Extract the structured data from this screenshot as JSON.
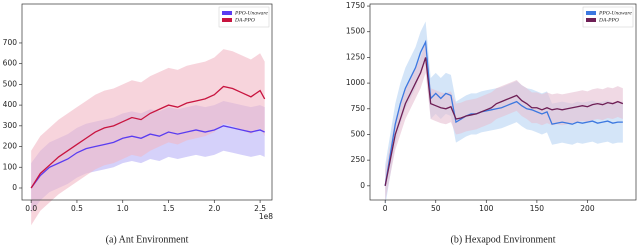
{
  "chart_data": [
    {
      "type": "line",
      "caption": "(a) Ant Environment",
      "x_offset_label": "1e8",
      "x": [
        0,
        0.1,
        0.2,
        0.3,
        0.4,
        0.5,
        0.6,
        0.7,
        0.8,
        0.9,
        1.0,
        1.1,
        1.2,
        1.3,
        1.4,
        1.5,
        1.6,
        1.7,
        1.8,
        1.9,
        2.0,
        2.1,
        2.2,
        2.3,
        2.4,
        2.5,
        2.55
      ],
      "xlim": [
        -0.1,
        2.63
      ],
      "xticks": [
        {
          "value": 0,
          "label": "0.0"
        },
        0.5,
        {
          "value": 1,
          "label": "1.0"
        },
        1.5,
        {
          "value": 2,
          "label": "2.0"
        },
        2.5
      ],
      "ylim": [
        -58,
        888
      ],
      "yticks": [
        0,
        100,
        200,
        300,
        400,
        500,
        600,
        700
      ],
      "legend": "upper right",
      "series": [
        {
          "name": "PPO-Unaware",
          "color": "#5a3cf0",
          "band_color": "#b9b3f7",
          "band": 120,
          "values": [
            0,
            60,
            100,
            120,
            140,
            170,
            190,
            200,
            210,
            220,
            240,
            250,
            240,
            260,
            250,
            270,
            260,
            270,
            280,
            270,
            280,
            300,
            290,
            280,
            270,
            280,
            270
          ]
        },
        {
          "name": "DA-PPO",
          "color": "#c8143f",
          "band_color": "#f2b8c4",
          "band": 180,
          "values": [
            0,
            70,
            110,
            150,
            180,
            210,
            240,
            270,
            290,
            300,
            320,
            340,
            330,
            360,
            380,
            400,
            390,
            410,
            420,
            430,
            450,
            490,
            480,
            460,
            440,
            470,
            430
          ]
        }
      ]
    },
    {
      "type": "line",
      "caption": "(b) Hexapod Environment",
      "x": [
        0,
        5,
        10,
        15,
        20,
        25,
        30,
        35,
        40,
        45,
        50,
        55,
        60,
        65,
        70,
        75,
        80,
        85,
        90,
        95,
        100,
        105,
        110,
        115,
        120,
        125,
        130,
        135,
        140,
        145,
        150,
        155,
        160,
        165,
        170,
        175,
        180,
        185,
        190,
        195,
        200,
        205,
        210,
        215,
        220,
        225,
        230,
        235
      ],
      "xlim": [
        -15,
        248
      ],
      "xticks": [
        0,
        50,
        100,
        150,
        200
      ],
      "ylim": [
        -138,
        1770
      ],
      "yticks": [
        0,
        250,
        500,
        750,
        1000,
        1250,
        1500,
        1750
      ],
      "legend": "upper right",
      "series": [
        {
          "name": "PPO-Unaware",
          "color": "#3c78e0",
          "band_color": "#b7d3f4",
          "band": 200,
          "values": [
            0,
            300,
            600,
            800,
            950,
            1050,
            1150,
            1300,
            1400,
            850,
            900,
            850,
            900,
            880,
            620,
            650,
            680,
            700,
            700,
            720,
            730,
            740,
            750,
            760,
            780,
            800,
            820,
            780,
            750,
            740,
            720,
            700,
            720,
            600,
            610,
            620,
            610,
            600,
            620,
            610,
            620,
            630,
            610,
            620,
            630,
            610,
            620,
            620
          ]
        },
        {
          "name": "DA-PPO",
          "color": "#6e1f55",
          "band_color": "#e6bfd2",
          "band": 150,
          "values": [
            0,
            250,
            500,
            650,
            800,
            900,
            1000,
            1100,
            1250,
            800,
            780,
            760,
            750,
            770,
            650,
            660,
            680,
            690,
            700,
            720,
            740,
            760,
            800,
            820,
            840,
            860,
            880,
            830,
            800,
            760,
            760,
            740,
            760,
            740,
            750,
            740,
            750,
            760,
            770,
            780,
            770,
            790,
            800,
            790,
            810,
            800,
            820,
            800
          ]
        }
      ]
    }
  ]
}
